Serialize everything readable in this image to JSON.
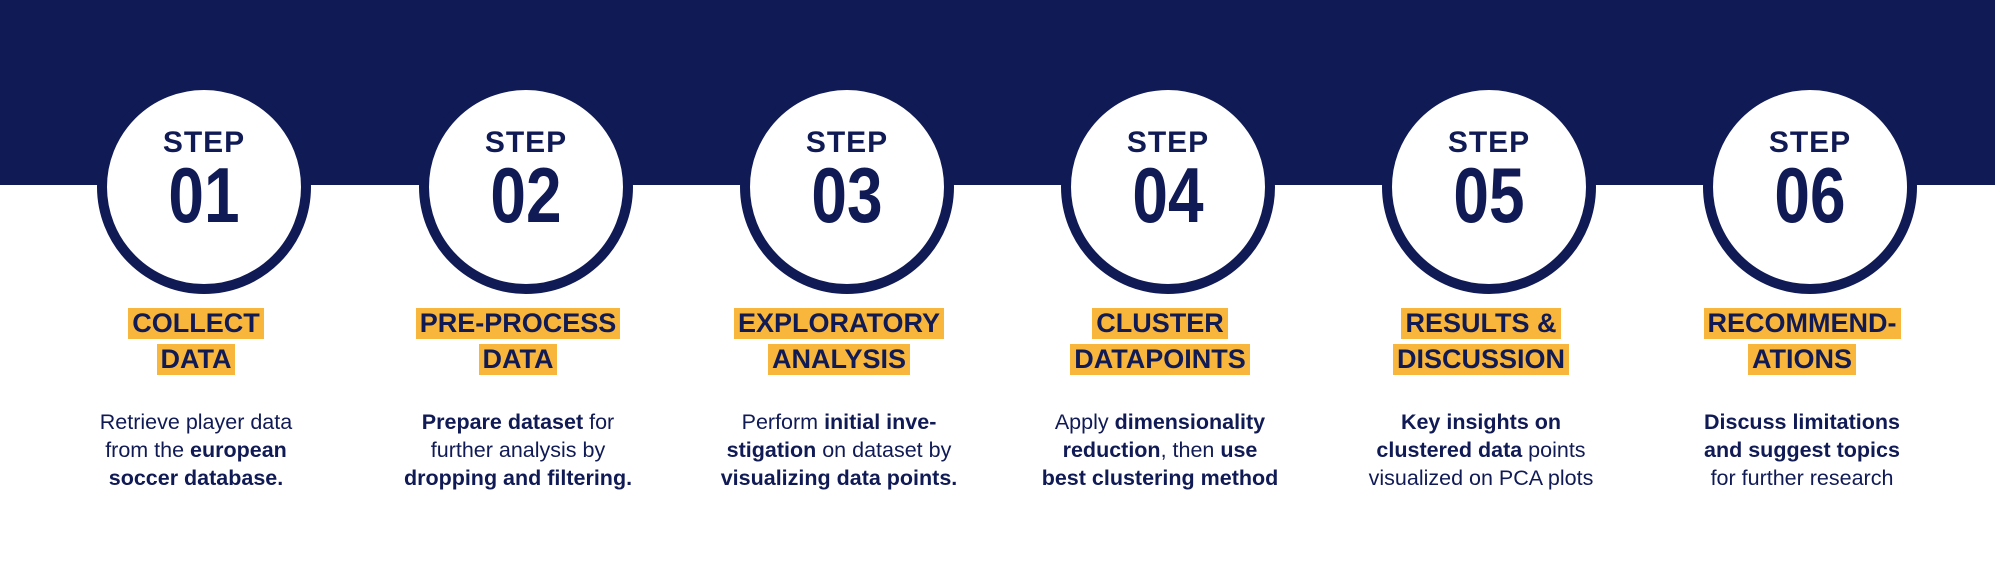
{
  "colors": {
    "navy": "#101a55",
    "accent": "#f8b63c",
    "background": "#ffffff"
  },
  "steps": [
    {
      "step_word": "STEP",
      "number": "01",
      "title_lines": [
        "COLLECT",
        "DATA"
      ],
      "desc_lines": [
        [
          {
            "t": "Retrieve player data",
            "b": false
          }
        ],
        [
          {
            "t": "from the ",
            "b": false
          },
          {
            "t": "european",
            "b": true
          }
        ],
        [
          {
            "t": "soccer database.",
            "b": true
          }
        ]
      ]
    },
    {
      "step_word": "STEP",
      "number": "02",
      "title_lines": [
        "PRE-PROCESS",
        "DATA"
      ],
      "desc_lines": [
        [
          {
            "t": "Prepare dataset",
            "b": true
          },
          {
            "t": " for",
            "b": false
          }
        ],
        [
          {
            "t": "further analysis by",
            "b": false
          }
        ],
        [
          {
            "t": "dropping and filtering.",
            "b": true
          }
        ]
      ]
    },
    {
      "step_word": "STEP",
      "number": "03",
      "title_lines": [
        "EXPLORATORY",
        "ANALYSIS"
      ],
      "desc_lines": [
        [
          {
            "t": "Perform ",
            "b": false
          },
          {
            "t": "initial inve-",
            "b": true
          }
        ],
        [
          {
            "t": "stigation",
            "b": true
          },
          {
            "t": " on dataset by",
            "b": false
          }
        ],
        [
          {
            "t": "visualizing data points.",
            "b": true
          }
        ]
      ]
    },
    {
      "step_word": "STEP",
      "number": "04",
      "title_lines": [
        "CLUSTER",
        "DATAPOINTS"
      ],
      "desc_lines": [
        [
          {
            "t": "Apply ",
            "b": false
          },
          {
            "t": "dimensionality",
            "b": true
          }
        ],
        [
          {
            "t": "reduction",
            "b": true
          },
          {
            "t": ", then ",
            "b": false
          },
          {
            "t": "use",
            "b": true
          }
        ],
        [
          {
            "t": "best clustering method",
            "b": true
          }
        ]
      ]
    },
    {
      "step_word": "STEP",
      "number": "05",
      "title_lines": [
        "RESULTS &",
        "DISCUSSION"
      ],
      "desc_lines": [
        [
          {
            "t": "Key insights on",
            "b": true
          }
        ],
        [
          {
            "t": "clustered data",
            "b": true
          },
          {
            "t": " points",
            "b": false
          }
        ],
        [
          {
            "t": "visualized on PCA plots",
            "b": false
          }
        ]
      ]
    },
    {
      "step_word": "STEP",
      "number": "06",
      "title_lines": [
        "RECOMMEND-",
        "ATIONS"
      ],
      "desc_lines": [
        [
          {
            "t": "Discuss limitations",
            "b": true
          }
        ],
        [
          {
            "t": "and suggest topics",
            "b": true
          }
        ],
        [
          {
            "t": "for further research",
            "b": false
          }
        ]
      ]
    }
  ]
}
